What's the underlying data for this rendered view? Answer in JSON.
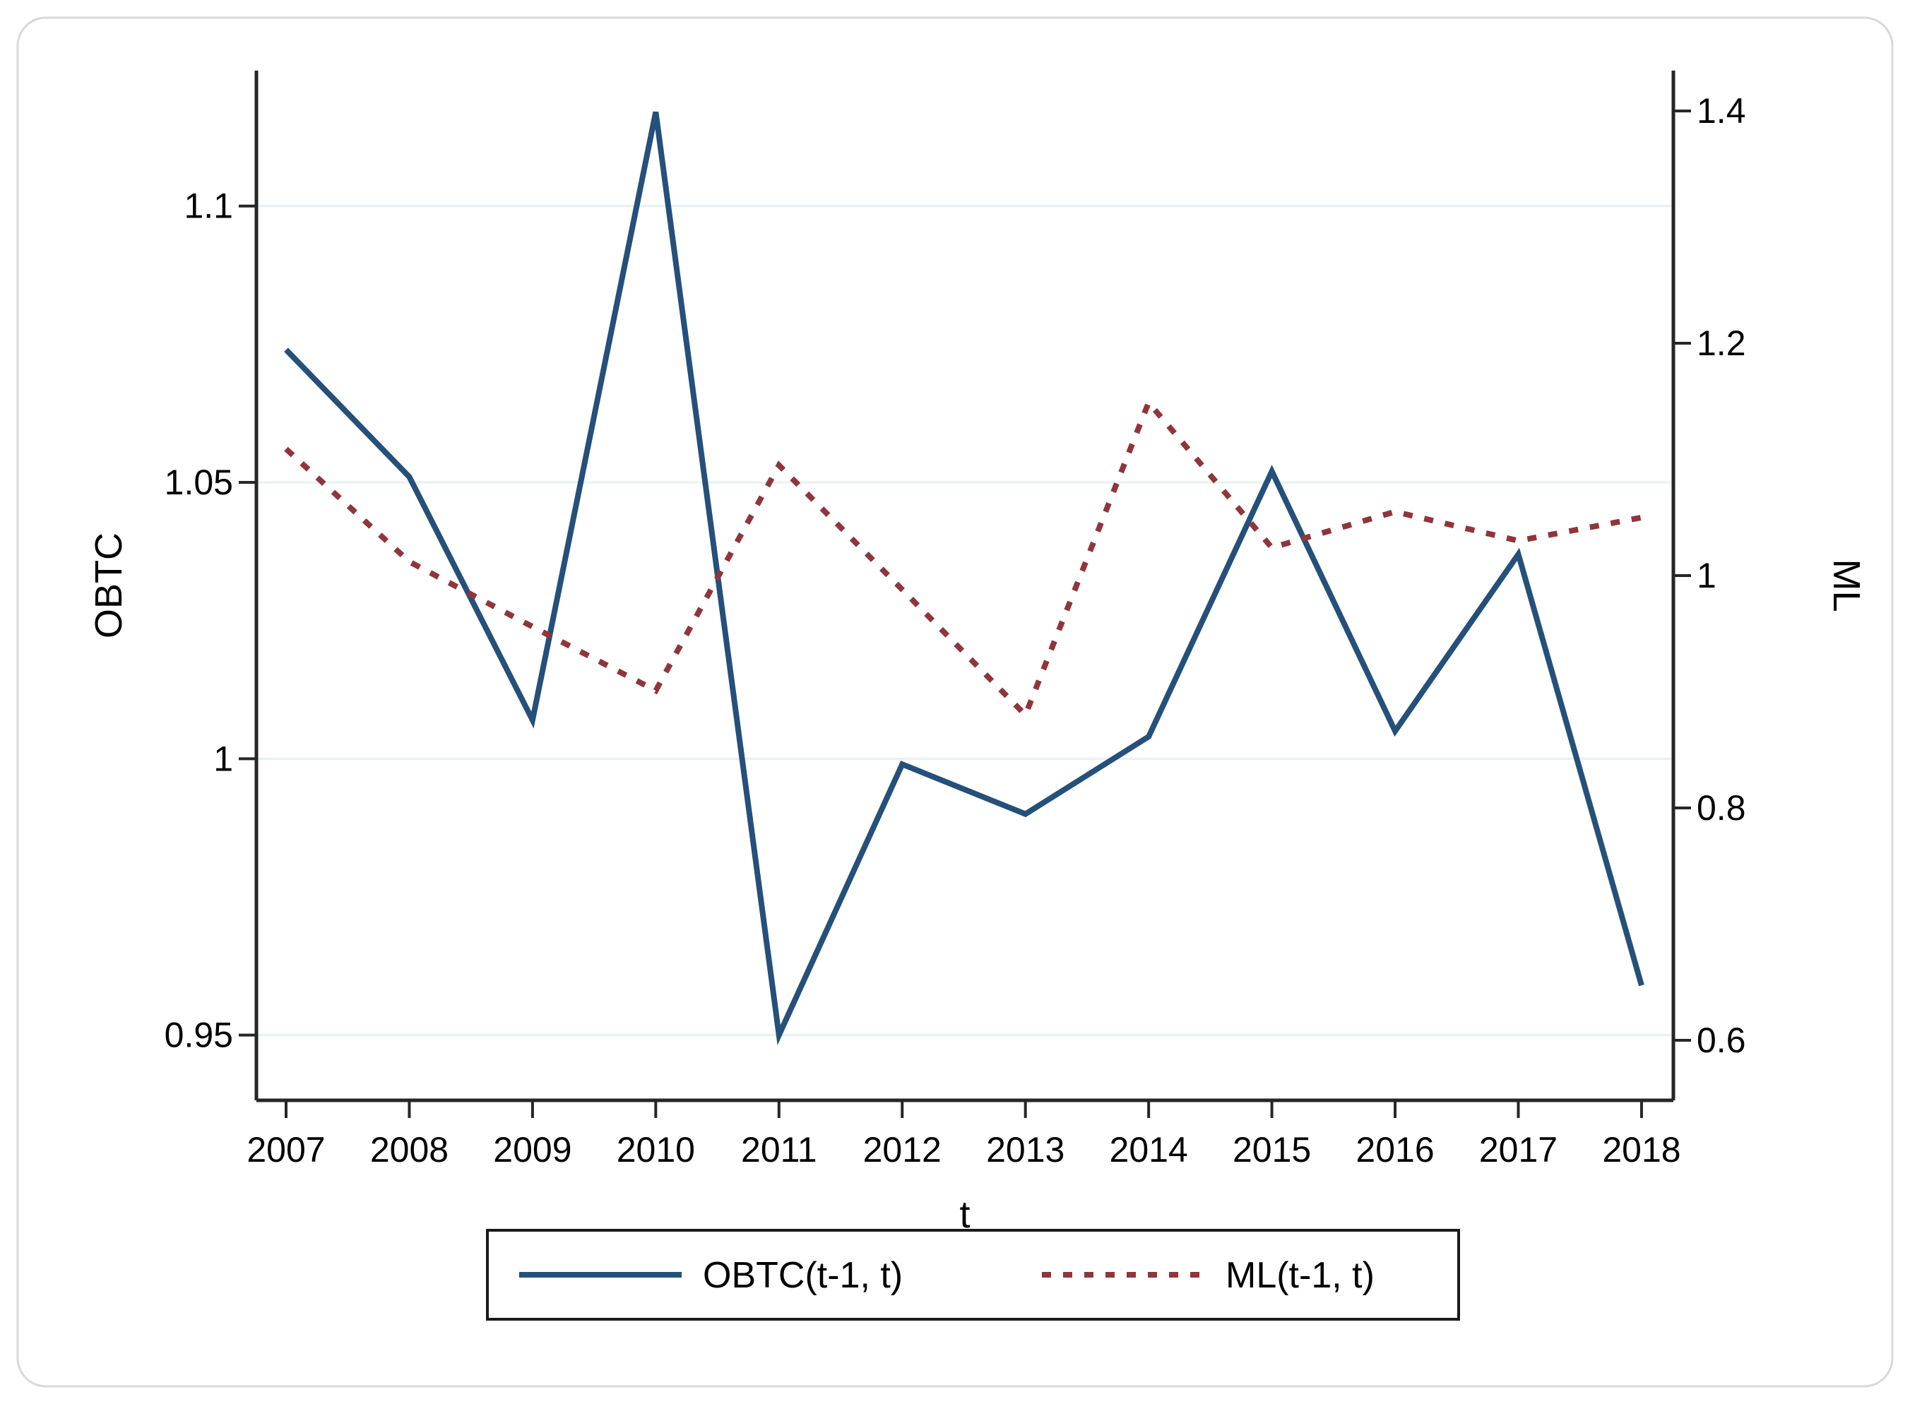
{
  "figure": {
    "background": "#ffffff",
    "frame_color": "#d9d9d9"
  },
  "chart_data": {
    "type": "line",
    "title": "",
    "xlabel": "t",
    "ylabel_left": "OBTC",
    "ylabel_right": "ML",
    "x": [
      2007,
      2008,
      2009,
      2010,
      2011,
      2012,
      2013,
      2014,
      2015,
      2016,
      2017,
      2018
    ],
    "left_ticks": [
      {
        "value": 0.95,
        "label": "0.95"
      },
      {
        "value": 1.0,
        "label": "1"
      },
      {
        "value": 1.05,
        "label": "1.05"
      },
      {
        "value": 1.1,
        "label": "1.1"
      }
    ],
    "right_ticks": [
      {
        "value": 0.6,
        "label": "0.6"
      },
      {
        "value": 0.8,
        "label": "0.8"
      },
      {
        "value": 1.0,
        "label": "1"
      },
      {
        "value": 1.2,
        "label": "1.2"
      },
      {
        "value": 1.4,
        "label": "1.4"
      }
    ],
    "ylim_left": [
      0.9382,
      1.1245
    ],
    "ylim_right": [
      0.5483,
      1.4347
    ],
    "grid": true,
    "grid_color": "#e6f1f1",
    "legend_position": "bottom-center",
    "series": [
      {
        "name": "OBTC(t-1, t)",
        "axis": "left",
        "line_style": "solid",
        "color": "#24507a",
        "values": [
          1.074,
          1.051,
          1.007,
          1.117,
          0.95,
          0.999,
          0.99,
          1.004,
          1.052,
          1.005,
          1.037,
          0.959
        ]
      },
      {
        "name": "ML(t-1, t)",
        "axis": "right",
        "line_style": "dotted",
        "color": "#90353b",
        "values": [
          1.109,
          1.012,
          0.956,
          0.901,
          1.095,
          0.988,
          0.88,
          1.149,
          1.024,
          1.055,
          1.03,
          1.05
        ]
      }
    ]
  }
}
